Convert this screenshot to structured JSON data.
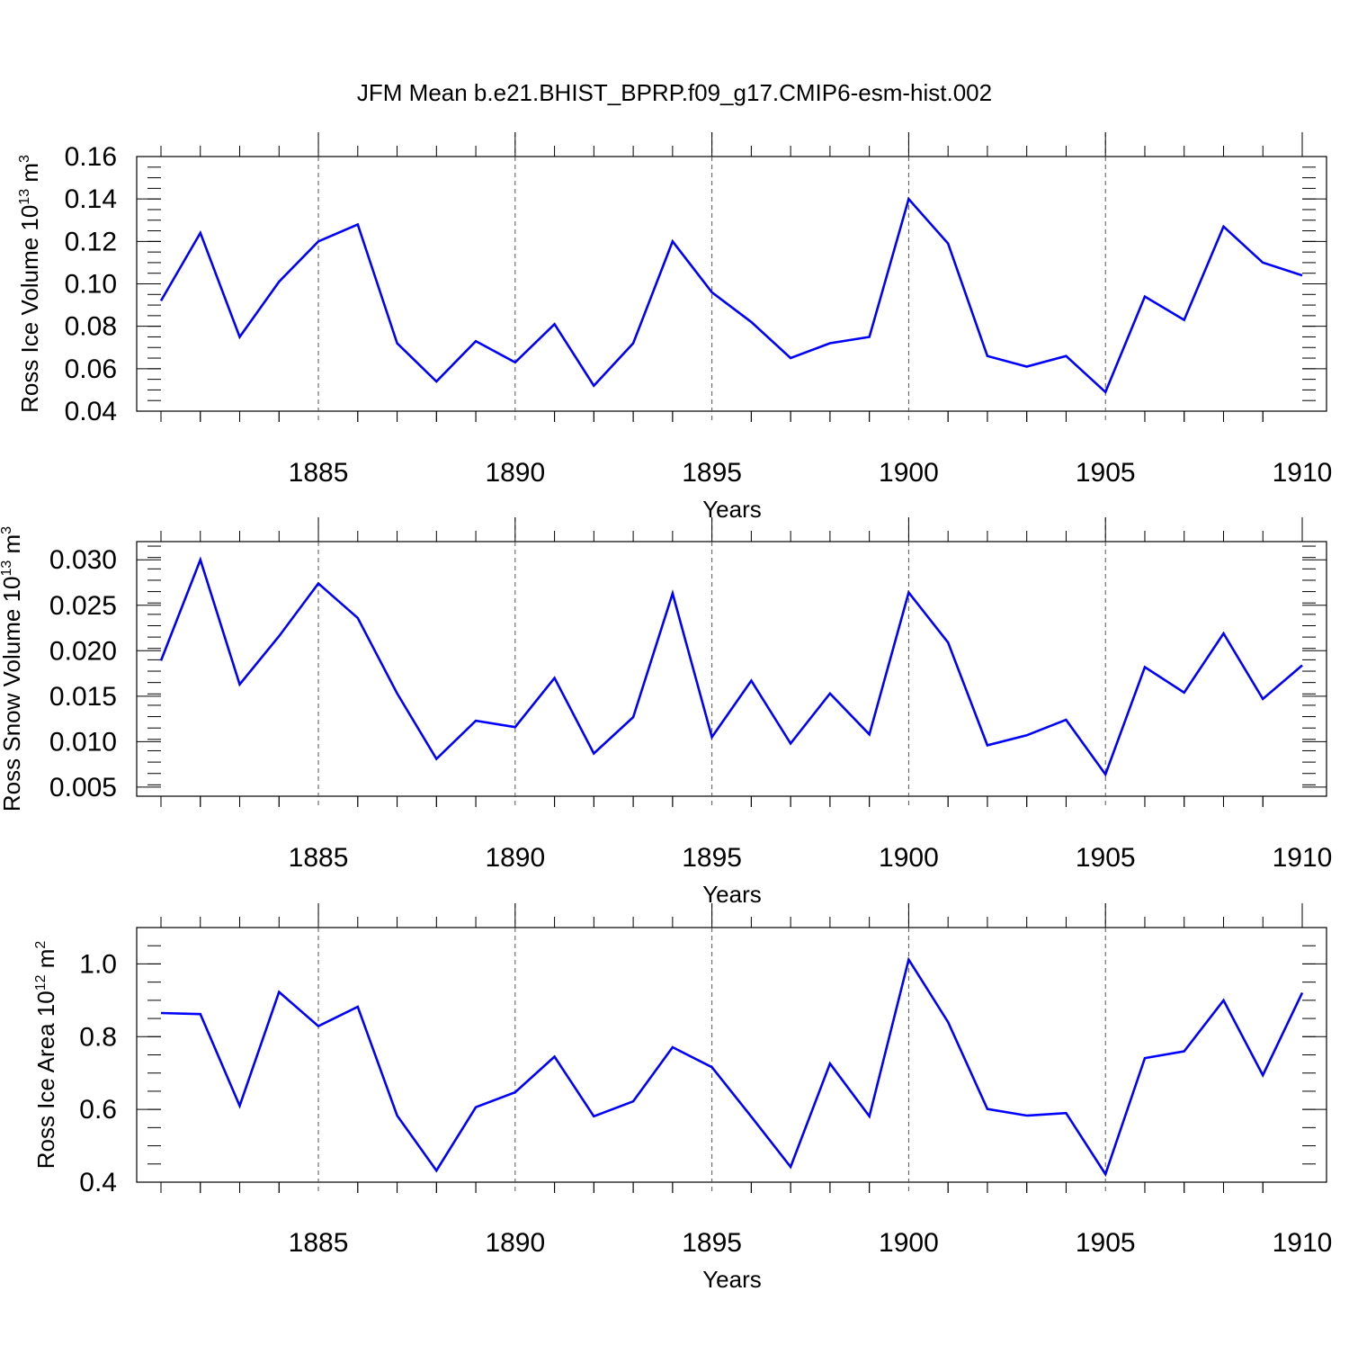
{
  "title": "JFM Mean b.e21.BHIST_BPRP.f09_g17.CMIP6-esm-hist.002",
  "chart_data": [
    {
      "type": "line",
      "title": "JFM Mean b.e21.BHIST_BPRP.f09_g17.CMIP6-esm-hist.002",
      "ylabel_main": "Ross Ice Volume 10",
      "ylabel_sup": "13",
      "ylabel_unit": " m",
      "ylabel_unit_sup": "3",
      "xlabel": "Years",
      "xlim": [
        1881,
        1910
      ],
      "ylim": [
        0.04,
        0.16
      ],
      "yticks": [
        0.04,
        0.06,
        0.08,
        0.1,
        0.12,
        0.14,
        0.16
      ],
      "ytick_labels": [
        "0.04",
        "0.06",
        "0.08",
        "0.10",
        "0.12",
        "0.14",
        "0.16"
      ],
      "xticks": [
        1885,
        1890,
        1895,
        1900,
        1905,
        1910
      ],
      "xtick_labels": [
        "1885",
        "1890",
        "1895",
        "1900",
        "1905",
        "1910"
      ],
      "grid_x": [
        1885,
        1890,
        1895,
        1900,
        1905
      ],
      "color": "#0000ff",
      "x": [
        1881,
        1882,
        1883,
        1884,
        1885,
        1886,
        1887,
        1888,
        1889,
        1890,
        1891,
        1892,
        1893,
        1894,
        1895,
        1896,
        1897,
        1898,
        1899,
        1900,
        1901,
        1902,
        1903,
        1904,
        1905,
        1906,
        1907,
        1908,
        1909,
        1910
      ],
      "y": [
        0.092,
        0.124,
        0.075,
        0.101,
        0.12,
        0.128,
        0.072,
        0.054,
        0.073,
        0.063,
        0.081,
        0.052,
        0.072,
        0.12,
        0.096,
        0.082,
        0.065,
        0.072,
        0.075,
        0.14,
        0.119,
        0.066,
        0.061,
        0.066,
        0.049,
        0.094,
        0.083,
        0.127,
        0.11,
        0.104
      ]
    },
    {
      "type": "line",
      "ylabel_main": "Ross Snow Volume 10",
      "ylabel_sup": "13",
      "ylabel_unit": " m",
      "ylabel_unit_sup": "3",
      "xlabel": "Years",
      "xlim": [
        1881,
        1910
      ],
      "ylim": [
        0.004,
        0.032
      ],
      "yticks": [
        0.005,
        0.01,
        0.015,
        0.02,
        0.025,
        0.03
      ],
      "ytick_labels": [
        "0.005",
        "0.010",
        "0.015",
        "0.020",
        "0.025",
        "0.030"
      ],
      "xticks": [
        1885,
        1890,
        1895,
        1900,
        1905,
        1910
      ],
      "xtick_labels": [
        "1885",
        "1890",
        "1895",
        "1900",
        "1905",
        "1910"
      ],
      "grid_x": [
        1885,
        1890,
        1895,
        1900,
        1905
      ],
      "color": "#0000ff",
      "x": [
        1881,
        1882,
        1883,
        1884,
        1885,
        1886,
        1887,
        1888,
        1889,
        1890,
        1891,
        1892,
        1893,
        1894,
        1895,
        1896,
        1897,
        1898,
        1899,
        1900,
        1901,
        1902,
        1903,
        1904,
        1905,
        1906,
        1907,
        1908,
        1909,
        1910
      ],
      "y": [
        0.0189,
        0.03,
        0.0163,
        0.0216,
        0.0274,
        0.0236,
        0.0153,
        0.0081,
        0.0123,
        0.0116,
        0.017,
        0.0087,
        0.0127,
        0.0263,
        0.0105,
        0.0167,
        0.0098,
        0.0153,
        0.0108,
        0.0264,
        0.0209,
        0.0096,
        0.0107,
        0.0124,
        0.0064,
        0.0182,
        0.0154,
        0.0219,
        0.0147,
        0.0184
      ]
    },
    {
      "type": "line",
      "ylabel_main": "Ross Ice Area 10",
      "ylabel_sup": "12",
      "ylabel_unit": " m",
      "ylabel_unit_sup": "2",
      "xlabel": "Years",
      "xlim": [
        1881,
        1910
      ],
      "ylim": [
        0.4,
        1.1
      ],
      "yticks": [
        0.4,
        0.6,
        0.8,
        1.0
      ],
      "ytick_labels": [
        "0.4",
        "0.6",
        "0.8",
        "1.0"
      ],
      "xticks": [
        1885,
        1890,
        1895,
        1900,
        1905,
        1910
      ],
      "xtick_labels": [
        "1885",
        "1890",
        "1895",
        "1900",
        "1905",
        "1910"
      ],
      "grid_x": [
        1885,
        1890,
        1895,
        1900,
        1905
      ],
      "color": "#0000ff",
      "x": [
        1881,
        1882,
        1883,
        1884,
        1885,
        1886,
        1887,
        1888,
        1889,
        1890,
        1891,
        1892,
        1893,
        1894,
        1895,
        1896,
        1897,
        1898,
        1899,
        1900,
        1901,
        1902,
        1903,
        1904,
        1905,
        1906,
        1907,
        1908,
        1909,
        1910
      ],
      "y": [
        0.865,
        0.862,
        0.61,
        0.923,
        0.829,
        0.882,
        0.583,
        0.432,
        0.606,
        0.647,
        0.745,
        0.581,
        0.622,
        0.771,
        0.716,
        0.58,
        0.442,
        0.726,
        0.581,
        1.012,
        0.84,
        0.601,
        0.583,
        0.59,
        0.422,
        0.741,
        0.76,
        0.9,
        0.694,
        0.921
      ]
    }
  ]
}
